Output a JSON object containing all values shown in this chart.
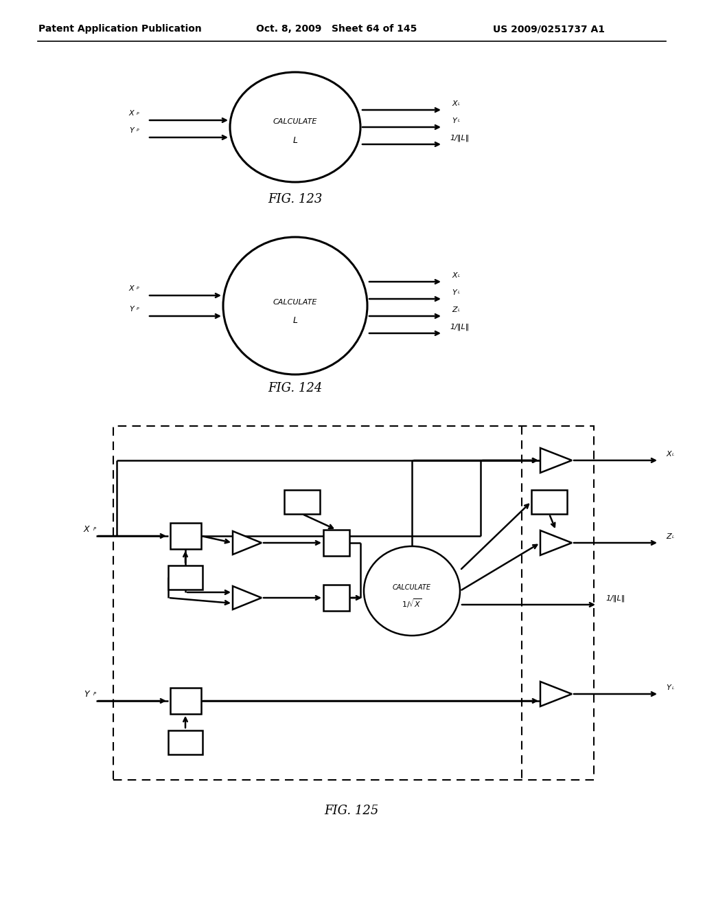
{
  "background_color": "#ffffff",
  "header_left": "Patent Application Publication",
  "header_mid": "Oct. 8, 2009   Sheet 64 of 145",
  "header_right": "US 2009/0251737 A1",
  "fig123_label": "FIG. 123",
  "fig124_label": "FIG. 124",
  "fig125_label": "FIG. 125"
}
